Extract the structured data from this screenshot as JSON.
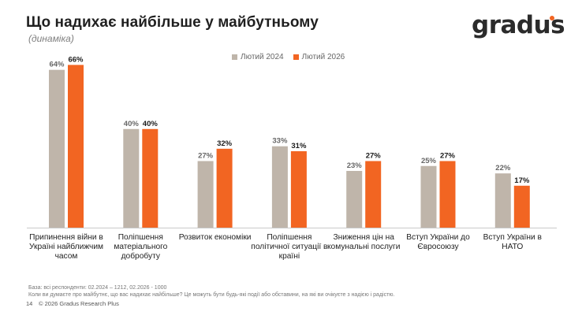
{
  "header": {
    "title": "Що надихає найбільше у майбутньому",
    "subtitle": "(динаміка)",
    "logo_text": "gradus",
    "logo_dot_color": "#f26522"
  },
  "colors": {
    "series_2024": "#bfb5aa",
    "series_2026": "#f26522"
  },
  "chart_data": {
    "type": "bar",
    "title": "Що надихає найбільше у майбутньому",
    "subtitle": "(динаміка)",
    "legend_position": "top-center",
    "ylim": [
      0,
      70
    ],
    "categories": [
      "Припинення війни в Україні найближчим часом",
      "Поліпшення матеріального добробуту",
      "Розвиток економіки",
      "Поліпшення політичної ситуації в країні",
      "Зниження цін на комунальні послуги",
      "Вступ України до Євросоюзу",
      "Вступ України в НАТО"
    ],
    "series": [
      {
        "name": "Лютий 2024",
        "values": [
          64,
          40,
          27,
          33,
          23,
          25,
          22
        ],
        "labels": [
          "64%",
          "40%",
          "27%",
          "33%",
          "23%",
          "25%",
          "22%"
        ]
      },
      {
        "name": "Лютий 2026",
        "values": [
          66,
          40,
          32,
          31,
          27,
          27,
          17
        ],
        "labels": [
          "66%",
          "40%",
          "32%",
          "31%",
          "27%",
          "27%",
          "17%"
        ]
      }
    ]
  },
  "footnotes": {
    "base": "База: всі респонденти: 02.2024 – 1212, 02.2026 - 1000",
    "question": "Коли ви думаєте про майбутнє, що вас надихає найбільше? Це можуть бути будь-які події або обставини, на які ви очікуєте з надією і радістю."
  },
  "footer": {
    "page_number": "14",
    "copyright": "© 2026 Gradus Research Plus"
  }
}
